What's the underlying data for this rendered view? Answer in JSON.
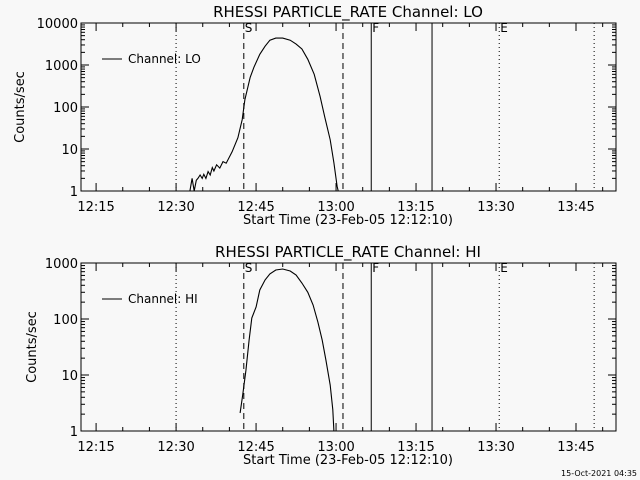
{
  "chart_data": [
    {
      "type": "line",
      "title": "RHESSI PARTICLE_RATE Channel: LO",
      "xlabel": "Start Time (23-Feb-05 12:12:10)",
      "ylabel": "Counts/sec",
      "x_units": "minutes after 12:00",
      "xlim": [
        12.17,
        112.5
      ],
      "ylim": [
        1,
        10000
      ],
      "yscale": "log",
      "xticks": [
        15,
        30,
        45,
        60,
        75,
        90,
        105
      ],
      "xtick_labels": [
        "12:15",
        "12:30",
        "12:45",
        "13:00",
        "13:15",
        "13:30",
        "13:45"
      ],
      "yticks": [
        1,
        10,
        100,
        1000,
        10000
      ],
      "ytick_labels": [
        "1",
        "10",
        "100",
        "1000",
        "10000"
      ],
      "legend": {
        "label": "Channel: LO",
        "position": "top-left"
      },
      "series": [
        {
          "name": "Channel: LO",
          "x": [
            32.6,
            33.0,
            33.4,
            33.8,
            34.1,
            34.5,
            34.9,
            35.2,
            35.6,
            36.0,
            36.4,
            36.8,
            37.1,
            37.6,
            38.2,
            38.8,
            39.4,
            40.5,
            41.6,
            42.4,
            42.9,
            43.9,
            44.6,
            45.7,
            46.7,
            47.6,
            48.7,
            50.0,
            51.4,
            52.5,
            53.6,
            54.7,
            55.9,
            57.0,
            57.9,
            58.9,
            59.6,
            60.2,
            60.4
          ],
          "y": [
            1,
            2.0,
            1,
            1.8,
            2.0,
            2.4,
            2.0,
            2.5,
            2.0,
            2.9,
            2.4,
            3.6,
            3.0,
            4.2,
            3.5,
            5.0,
            4.6,
            8.6,
            18.6,
            50,
            150,
            510,
            880,
            1800,
            2800,
            3900,
            4360,
            4360,
            3900,
            3150,
            2400,
            1370,
            600,
            178,
            56,
            16.6,
            4.7,
            1.3,
            1
          ]
        }
      ],
      "markers": [
        {
          "time": 30.0,
          "style": "dotted",
          "label": ""
        },
        {
          "time": 42.7,
          "style": "dashed",
          "label": "S"
        },
        {
          "time": 61.3,
          "style": "dashed",
          "label": ""
        },
        {
          "time": 66.6,
          "style": "solid",
          "label": "F"
        },
        {
          "time": 78.0,
          "style": "solid",
          "label": ""
        },
        {
          "time": 90.6,
          "style": "dotted",
          "label": "E"
        },
        {
          "time": 108.4,
          "style": "dotted",
          "label": ""
        }
      ]
    },
    {
      "type": "line",
      "title": "RHESSI PARTICLE_RATE Channel: HI",
      "xlabel": "Start Time (23-Feb-05 12:12:10)",
      "ylabel": "Counts/sec",
      "x_units": "minutes after 12:00",
      "xlim": [
        12.17,
        112.5
      ],
      "ylim": [
        1,
        1000
      ],
      "yscale": "log",
      "xticks": [
        15,
        30,
        45,
        60,
        75,
        90,
        105
      ],
      "xtick_labels": [
        "12:15",
        "12:30",
        "12:45",
        "13:00",
        "13:15",
        "13:30",
        "13:45"
      ],
      "yticks": [
        1,
        10,
        100,
        1000
      ],
      "ytick_labels": [
        "1",
        "10",
        "100",
        "1000"
      ],
      "legend": {
        "label": "Channel: HI",
        "position": "top-left"
      },
      "series": [
        {
          "name": "Channel: HI",
          "x": [
            42.0,
            42.5,
            43.1,
            43.7,
            44.2,
            45.0,
            45.7,
            46.7,
            47.6,
            48.7,
            50.0,
            51.4,
            52.5,
            53.6,
            54.7,
            55.7,
            56.6,
            57.4,
            58.1,
            58.9,
            59.4,
            59.6
          ],
          "y": [
            2.1,
            4.4,
            12,
            42,
            104,
            164,
            330,
            500,
            640,
            750,
            780,
            720,
            610,
            440,
            300,
            178,
            88,
            42,
            18.5,
            6.6,
            2.4,
            1
          ]
        }
      ],
      "markers": [
        {
          "time": 30.0,
          "style": "dotted",
          "label": ""
        },
        {
          "time": 42.7,
          "style": "dashed",
          "label": "S"
        },
        {
          "time": 61.3,
          "style": "dashed",
          "label": ""
        },
        {
          "time": 66.6,
          "style": "solid",
          "label": "F"
        },
        {
          "time": 78.0,
          "style": "solid",
          "label": ""
        },
        {
          "time": 90.6,
          "style": "dotted",
          "label": "E"
        },
        {
          "time": 108.4,
          "style": "dotted",
          "label": ""
        }
      ]
    }
  ],
  "footer": {
    "timestamp": "15-Oct-2021 04:35"
  }
}
